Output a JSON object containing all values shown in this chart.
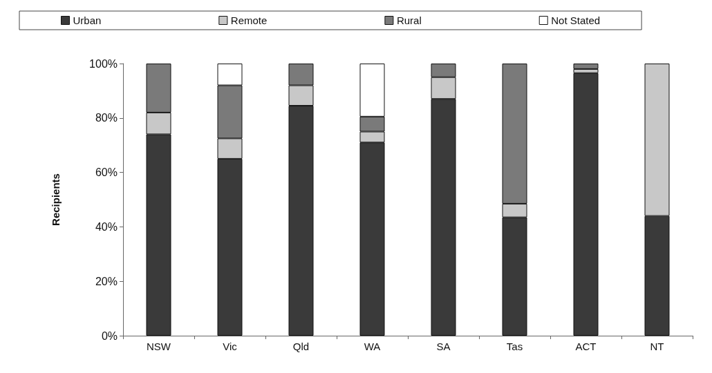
{
  "chart_data": {
    "type": "bar",
    "stacked": true,
    "ylabel": "Recipients",
    "categories": [
      "NSW",
      "Vic",
      "Qld",
      "WA",
      "SA",
      "Tas",
      "ACT",
      "NT"
    ],
    "series": [
      {
        "name": "Urban",
        "color": "#3a3a3a",
        "values": [
          74,
          65,
          84.5,
          71,
          87,
          43.5,
          96.5,
          44
        ]
      },
      {
        "name": "Remote",
        "color": "#c8c8c8",
        "values": [
          8,
          7.5,
          7.5,
          4,
          8,
          5,
          1.5,
          56
        ]
      },
      {
        "name": "Rural",
        "color": "#7a7a7a",
        "values": [
          18,
          19.5,
          8,
          5.5,
          5,
          51.5,
          2,
          null
        ]
      },
      {
        "name": "Not Stated",
        "color": "#ffffff",
        "values": [
          null,
          8,
          null,
          19.5,
          null,
          null,
          null,
          null
        ]
      }
    ],
    "ylim": [
      0,
      100
    ],
    "yticks": [
      {
        "value": 0,
        "label": "0%"
      },
      {
        "value": 20,
        "label": "20%"
      },
      {
        "value": 40,
        "label": "40%"
      },
      {
        "value": 60,
        "label": "60%"
      },
      {
        "value": 80,
        "label": "80%"
      },
      {
        "value": 100,
        "label": "100%"
      }
    ],
    "grid": false,
    "legend": "top"
  }
}
